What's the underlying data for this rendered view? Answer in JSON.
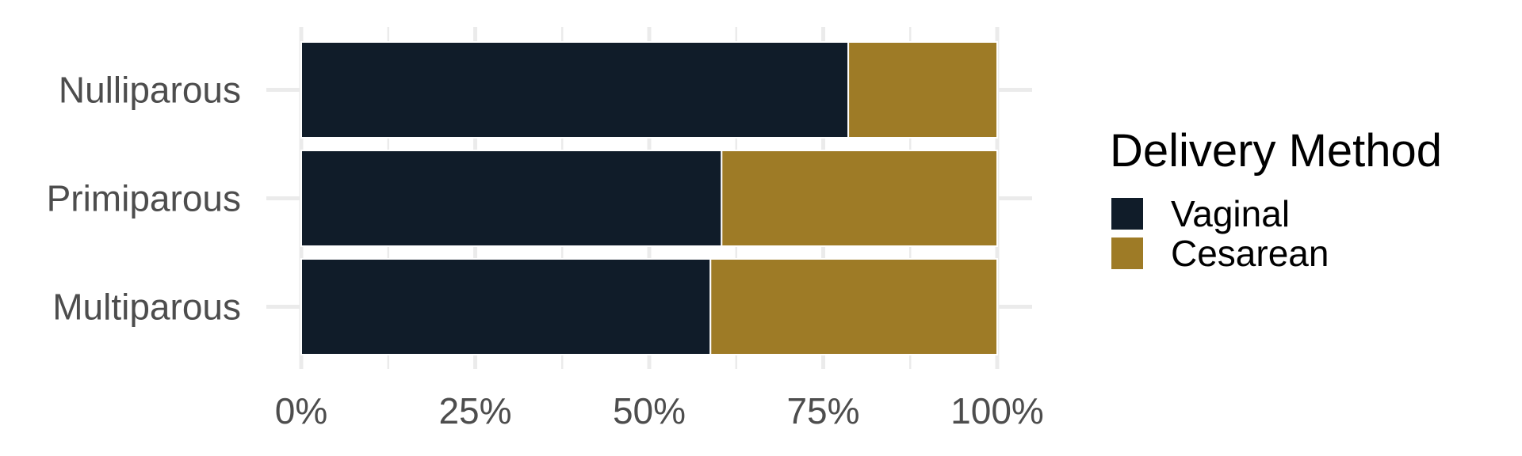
{
  "chart_data": {
    "type": "bar",
    "orientation": "horizontal",
    "stacked": true,
    "normalized": true,
    "title": "",
    "xlabel": "",
    "ylabel": "",
    "categories": [
      "Nulliparous",
      "Primiparous",
      "Multiparous"
    ],
    "series": [
      {
        "name": "Vaginal",
        "color": "#101c29",
        "values": [
          78.6,
          60.4,
          58.8
        ]
      },
      {
        "name": "Cesarean",
        "color": "#9e7b26",
        "values": [
          21.4,
          39.6,
          41.2
        ]
      }
    ],
    "xlim": [
      0,
      100
    ],
    "x_ticks": [
      0,
      25,
      50,
      75,
      100
    ],
    "x_tick_labels": [
      "0%",
      "25%",
      "50%",
      "75%",
      "100%"
    ],
    "grid": true,
    "legend": {
      "title": "Delivery Method",
      "position": "right"
    }
  }
}
